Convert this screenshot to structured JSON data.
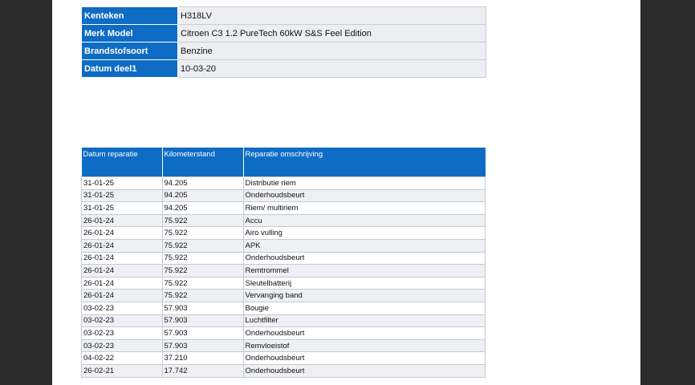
{
  "vehicle": {
    "rows": [
      {
        "label": "Kenteken",
        "value": "H318LV"
      },
      {
        "label": "Merk Model",
        "value": "Citroen C3 1.2 PureTech 60kW S&S Feel Edition"
      },
      {
        "label": "Brandstofsoort",
        "value": "Benzine"
      },
      {
        "label": "Datum deel1",
        "value": "10-03-20"
      }
    ]
  },
  "repairs": {
    "headers": [
      "Datum reparatie",
      "Kilometerstand",
      "Reparatie omschrijving"
    ],
    "rows": [
      [
        "31-01-25",
        "94.205",
        "Distributie riem"
      ],
      [
        "31-01-25",
        "94.205",
        "Onderhoudsbeurt"
      ],
      [
        "31-01-25",
        "94.205",
        "Riem/ multiriem"
      ],
      [
        "26-01-24",
        "75.922",
        "Accu"
      ],
      [
        "26-01-24",
        "75.922",
        "Airo vulling"
      ],
      [
        "26-01-24",
        "75.922",
        "APK"
      ],
      [
        "26-01-24",
        "75.922",
        "Onderhoudsbeurt"
      ],
      [
        "26-01-24",
        "75.922",
        "Remtrommel"
      ],
      [
        "26-01-24",
        "75.922",
        "Sleutelbatterij"
      ],
      [
        "26-01-24",
        "75.922",
        "Vervanging band"
      ],
      [
        "03-02-23",
        "57.903",
        "Bougie"
      ],
      [
        "03-02-23",
        "57.903",
        "Luchtfilter"
      ],
      [
        "03-02-23",
        "57.903",
        "Onderhoudsbeurt"
      ],
      [
        "03-02-23",
        "57.903",
        "Remvloeistof"
      ],
      [
        "04-02-22",
        "37.210",
        "Onderhoudsbeurt"
      ],
      [
        "26-02-21",
        "17.742",
        "Onderhoudsbeurt"
      ]
    ]
  }
}
